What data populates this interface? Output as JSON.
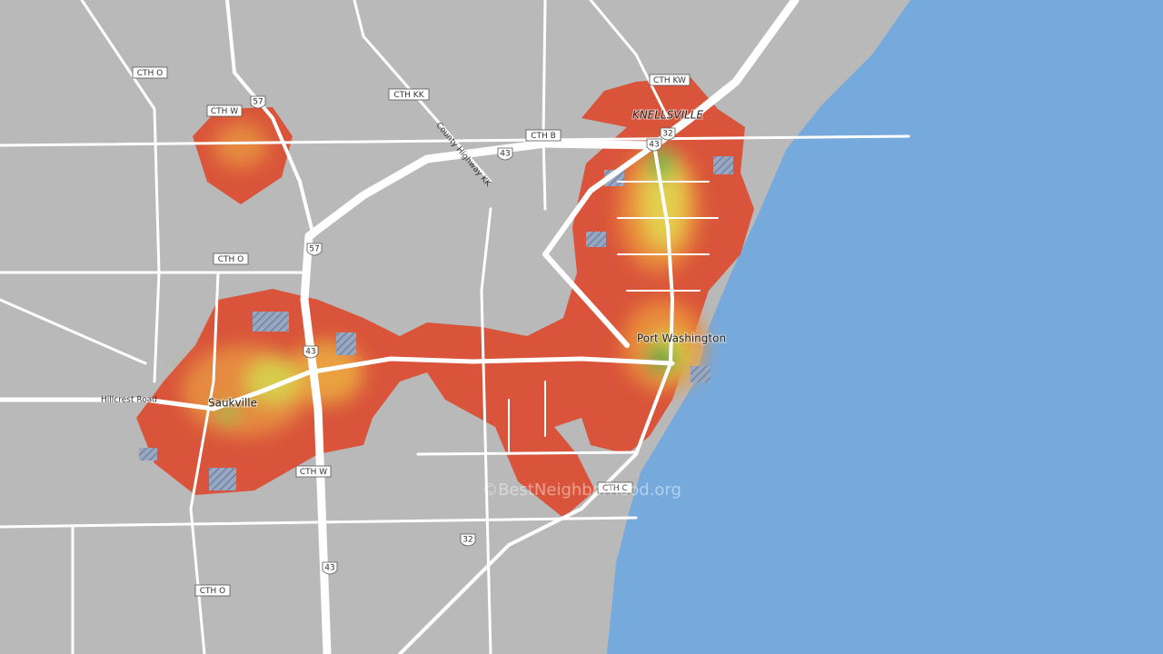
{
  "map": {
    "places": [
      "Port Washington",
      "Saukville",
      "KNELLSVILLE"
    ],
    "route_boxes": [
      "CTH O",
      "CTH W",
      "CTH KK",
      "CTH B",
      "CTH KW",
      "CTH O",
      "CTH W",
      "CTH C",
      "CTH O"
    ],
    "route_shields": [
      "57",
      "43",
      "43",
      "32",
      "57",
      "43",
      "32",
      "43"
    ],
    "road_names": [
      "Hillcrest Road",
      "County Highway KK"
    ],
    "watermark": "©BestNeighborhood.org"
  }
}
